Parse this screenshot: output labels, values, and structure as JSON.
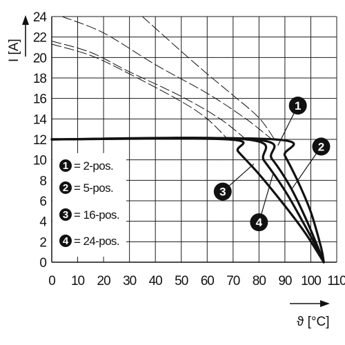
{
  "chart_data": {
    "type": "line",
    "xlabel": "ϑ [°C]",
    "ylabel": "I [A]",
    "xlim": [
      0,
      110
    ],
    "ylim": [
      0,
      24
    ],
    "x_ticks": [
      0,
      10,
      20,
      30,
      40,
      50,
      60,
      70,
      80,
      90,
      100,
      110
    ],
    "y_ticks": [
      0,
      2,
      4,
      6,
      8,
      10,
      12,
      14,
      16,
      18,
      20,
      22,
      24
    ],
    "grid": true,
    "legend_position": "bottom-left",
    "legend": [
      {
        "marker": "1",
        "label": "= 2-pos."
      },
      {
        "marker": "2",
        "label": "= 5-pos."
      },
      {
        "marker": "3",
        "label": "= 16-pos."
      },
      {
        "marker": "4",
        "label": "= 24-pos."
      }
    ],
    "series": [
      {
        "name": "1",
        "style": "solid",
        "x": [
          0,
          86,
          90,
          95,
          100,
          104,
          105
        ],
        "y": [
          12,
          12,
          10.4,
          7.9,
          4.9,
          1.4,
          0
        ]
      },
      {
        "name": "2",
        "style": "solid",
        "x": [
          0,
          78,
          85,
          92,
          98,
          103,
          105
        ],
        "y": [
          12,
          12,
          10.1,
          7.4,
          4.3,
          1.3,
          0
        ]
      },
      {
        "name": "4",
        "style": "solid",
        "x": [
          0,
          75,
          82,
          90,
          97,
          103,
          105
        ],
        "y": [
          12,
          12,
          9.9,
          7.0,
          3.9,
          1.1,
          0
        ]
      },
      {
        "name": "3",
        "style": "solid",
        "x": [
          0,
          68,
          72,
          80,
          90,
          98,
          105
        ],
        "y": [
          12,
          12,
          10.8,
          8.6,
          5.5,
          2.8,
          0
        ]
      },
      {
        "name": "1",
        "style": "dashed",
        "x": [
          35,
          50,
          60,
          70,
          80,
          86
        ],
        "y": [
          24,
          20.6,
          18.4,
          16.3,
          14.1,
          12
        ]
      },
      {
        "name": "2",
        "style": "dashed",
        "x": [
          4,
          20,
          40,
          60,
          75,
          85
        ],
        "y": [
          24,
          22.4,
          19.3,
          16.5,
          14.0,
          12
        ]
      },
      {
        "name": "4",
        "style": "dashed",
        "x": [
          0,
          15,
          30,
          50,
          65,
          75
        ],
        "y": [
          21.6,
          20.5,
          18.6,
          16.2,
          14.0,
          12
        ]
      },
      {
        "name": "3",
        "style": "dashed",
        "x": [
          0,
          15,
          30,
          50,
          60,
          68
        ],
        "y": [
          21.3,
          20.2,
          18.4,
          15.7,
          14.0,
          12
        ]
      }
    ],
    "annotations": [
      {
        "label": "1",
        "x": 95,
        "y": 15.3
      },
      {
        "label": "2",
        "x": 104,
        "y": 11.3
      },
      {
        "label": "3",
        "x": 66,
        "y": 6.9
      },
      {
        "label": "4",
        "x": 80,
        "y": 3.9
      }
    ]
  }
}
